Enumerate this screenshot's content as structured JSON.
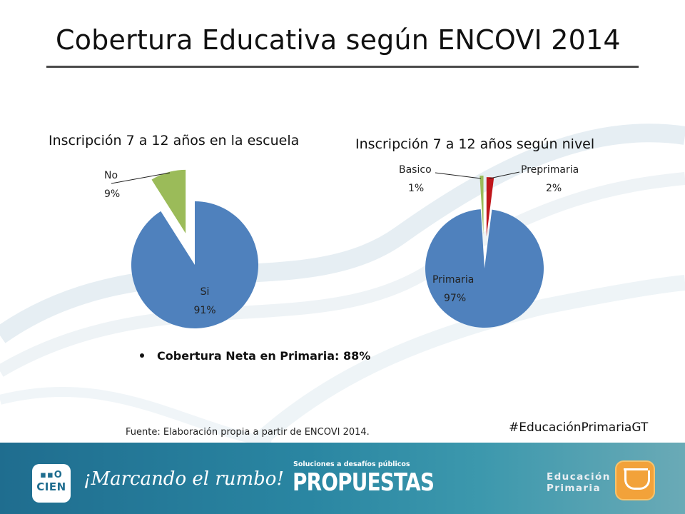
{
  "title": "Cobertura Educativa según ENCOVI 2014",
  "chart_data": [
    {
      "type": "pie",
      "title": "Inscripción 7 a 12 años en la escuela",
      "labels": [
        "Si",
        "No"
      ],
      "values": [
        91,
        9
      ],
      "value_labels": [
        "91%",
        "9%"
      ],
      "colors": [
        "#4f81bd",
        "#9bbb59"
      ],
      "exploded": "No"
    },
    {
      "type": "pie",
      "title": "Inscripción 7 a 12 años según nivel",
      "labels": [
        "Primaria",
        "Basico",
        "Preprimaria"
      ],
      "values": [
        97,
        1,
        2
      ],
      "value_labels": [
        "97%",
        "1%",
        "2%"
      ],
      "colors": [
        "#4f81bd",
        "#9bbb59",
        "#c0161b"
      ],
      "exploded": "Basico, Preprimaria"
    }
  ],
  "bullet": "Cobertura Neta en Primaria: 88%",
  "source": "Fuente: Elaboración propia a partir de ENCOVI 2014.",
  "hashtag": "#EducaciónPrimariaGT",
  "footer": {
    "logo_top": "▪▪O",
    "logo_bottom": "CIEN",
    "slogan": "¡Marcando el rumbo!",
    "propuestas_sub": "Soluciones a desafíos públicos",
    "propuestas": "PROPUESTAS",
    "edu_line1": "Educación",
    "edu_line2": "Primaria",
    "color": "#2a86a2"
  }
}
